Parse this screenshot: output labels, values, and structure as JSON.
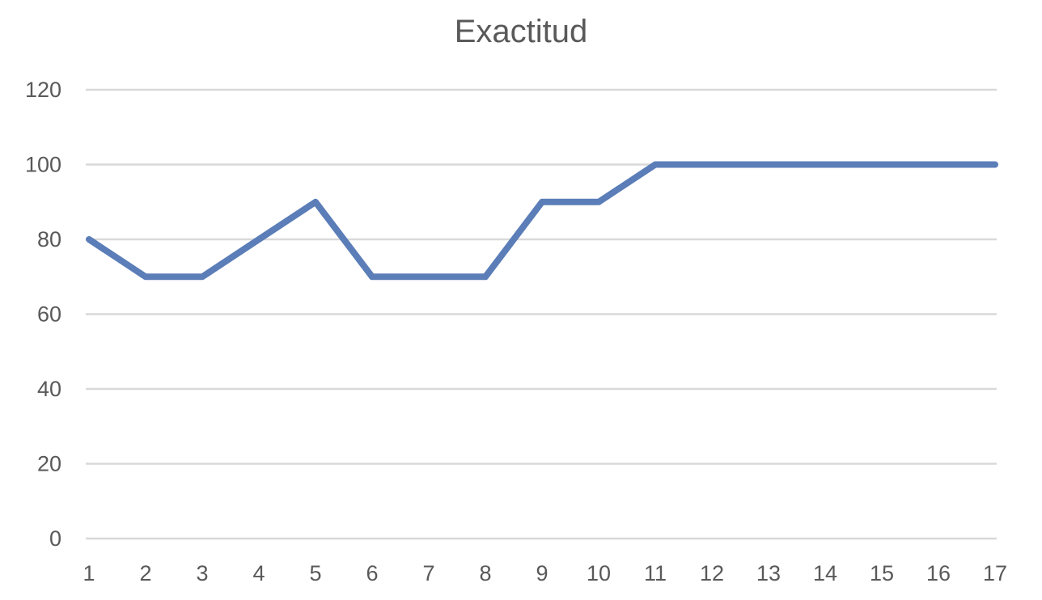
{
  "chart_data": {
    "type": "line",
    "title": "Exactitud",
    "xlabel": "",
    "ylabel": "",
    "categories": [
      "1",
      "2",
      "3",
      "4",
      "5",
      "6",
      "7",
      "8",
      "9",
      "10",
      "11",
      "12",
      "13",
      "14",
      "15",
      "16",
      "17"
    ],
    "series": [
      {
        "values": [
          80,
          70,
          70,
          80,
          90,
          70,
          70,
          70,
          90,
          90,
          100,
          100,
          100,
          100,
          100,
          100,
          100
        ]
      }
    ],
    "ylim": [
      0,
      120
    ],
    "yticks": [
      0,
      20,
      40,
      60,
      80,
      100,
      120
    ],
    "grid": true,
    "legend": "none",
    "colors": {
      "series": "#5b7db8",
      "grid": "#d9d9d9",
      "text": "#595959"
    }
  }
}
